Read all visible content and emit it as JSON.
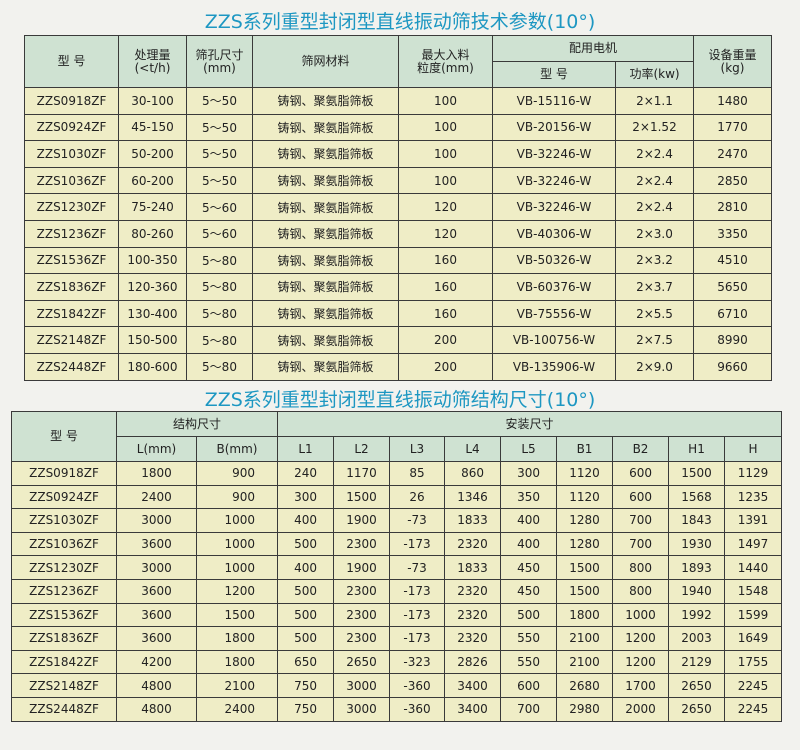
{
  "colors": {
    "title": "#1d97c2",
    "header_bg": "#cfe2d2",
    "row_bg": "#efedc6"
  },
  "table1": {
    "title": "ZZS系列重型封闭型直线振动筛技术参数(10°)",
    "headers": {
      "model": "型  号",
      "capacity": "处理量\n(<t/h)",
      "aperture": "筛孔尺寸\n(mm)",
      "material": "筛网材料",
      "max_feed": "最大入料\n粒度(mm)",
      "motor": "配用电机",
      "motor_model": "型  号",
      "motor_power": "功率(kw)",
      "weight": "设备重量\n(kg)"
    },
    "rows": [
      [
        "ZZS0918ZF",
        "30-100",
        "5～50",
        "铸钢、聚氨脂筛板",
        "100",
        "VB-15116-W",
        "2×1.1",
        "1480"
      ],
      [
        "ZZS0924ZF",
        "45-150",
        "5～50",
        "铸钢、聚氨脂筛板",
        "100",
        "VB-20156-W",
        "2×1.52",
        "1770"
      ],
      [
        "ZZS1030ZF",
        "50-200",
        "5～50",
        "铸钢、聚氨脂筛板",
        "100",
        "VB-32246-W",
        "2×2.4",
        "2470"
      ],
      [
        "ZZS1036ZF",
        "60-200",
        "5～50",
        "铸钢、聚氨脂筛板",
        "100",
        "VB-32246-W",
        "2×2.4",
        "2850"
      ],
      [
        "ZZS1230ZF",
        "75-240",
        "5～60",
        "铸钢、聚氨脂筛板",
        "120",
        "VB-32246-W",
        "2×2.4",
        "2810"
      ],
      [
        "ZZS1236ZF",
        "80-260",
        "5～60",
        "铸钢、聚氨脂筛板",
        "120",
        "VB-40306-W",
        "2×3.0",
        "3350"
      ],
      [
        "ZZS1536ZF",
        "100-350",
        "5～80",
        "铸钢、聚氨脂筛板",
        "160",
        "VB-50326-W",
        "2×3.2",
        "4510"
      ],
      [
        "ZZS1836ZF",
        "120-360",
        "5～80",
        "铸钢、聚氨脂筛板",
        "160",
        "VB-60376-W",
        "2×3.7",
        "5650"
      ],
      [
        "ZZS1842ZF",
        "130-400",
        "5～80",
        "铸钢、聚氨脂筛板",
        "160",
        "VB-75556-W",
        "2×5.5",
        "6710"
      ],
      [
        "ZZS2148ZF",
        "150-500",
        "5～80",
        "铸钢、聚氨脂筛板",
        "200",
        "VB-100756-W",
        "2×7.5",
        "8990"
      ],
      [
        "ZZS2448ZF",
        "180-600",
        "5～80",
        "铸钢、聚氨脂筛板",
        "200",
        "VB-135906-W",
        "2×9.0",
        "9660"
      ]
    ]
  },
  "table2": {
    "title": "ZZS系列重型封闭型直线振动筛结构尺寸(10°)",
    "headers": {
      "model": "型  号",
      "structure": "结构尺寸",
      "install": "安装尺寸",
      "sub": [
        "L(mm)",
        "B(mm)",
        "L1",
        "L2",
        "L3",
        "L4",
        "L5",
        "B1",
        "B2",
        "H1",
        "H"
      ]
    },
    "rows": [
      [
        "ZZS0918ZF",
        "1800",
        "900",
        "240",
        "1170",
        "85",
        "860",
        "300",
        "1120",
        "600",
        "1500",
        "1129"
      ],
      [
        "ZZS0924ZF",
        "2400",
        "900",
        "300",
        "1500",
        "26",
        "1346",
        "350",
        "1120",
        "600",
        "1568",
        "1235"
      ],
      [
        "ZZS1030ZF",
        "3000",
        "1000",
        "400",
        "1900",
        "-73",
        "1833",
        "400",
        "1280",
        "700",
        "1843",
        "1391"
      ],
      [
        "ZZS1036ZF",
        "3600",
        "1000",
        "500",
        "2300",
        "-173",
        "2320",
        "400",
        "1280",
        "700",
        "1930",
        "1497"
      ],
      [
        "ZZS1230ZF",
        "3000",
        "1000",
        "400",
        "1900",
        "-73",
        "1833",
        "450",
        "1500",
        "800",
        "1893",
        "1440"
      ],
      [
        "ZZS1236ZF",
        "3600",
        "1200",
        "500",
        "2300",
        "-173",
        "2320",
        "450",
        "1500",
        "800",
        "1940",
        "1548"
      ],
      [
        "ZZS1536ZF",
        "3600",
        "1500",
        "500",
        "2300",
        "-173",
        "2320",
        "500",
        "1800",
        "1000",
        "1992",
        "1599"
      ],
      [
        "ZZS1836ZF",
        "3600",
        "1800",
        "500",
        "2300",
        "-173",
        "2320",
        "550",
        "2100",
        "1200",
        "2003",
        "1649"
      ],
      [
        "ZZS1842ZF",
        "4200",
        "1800",
        "650",
        "2650",
        "-323",
        "2826",
        "550",
        "2100",
        "1200",
        "2129",
        "1755"
      ],
      [
        "ZZS2148ZF",
        "4800",
        "2100",
        "750",
        "3000",
        "-360",
        "3400",
        "600",
        "2680",
        "1700",
        "2650",
        "2245"
      ],
      [
        "ZZS2448ZF",
        "4800",
        "2400",
        "750",
        "3000",
        "-360",
        "3400",
        "700",
        "2980",
        "2000",
        "2650",
        "2245"
      ]
    ]
  }
}
